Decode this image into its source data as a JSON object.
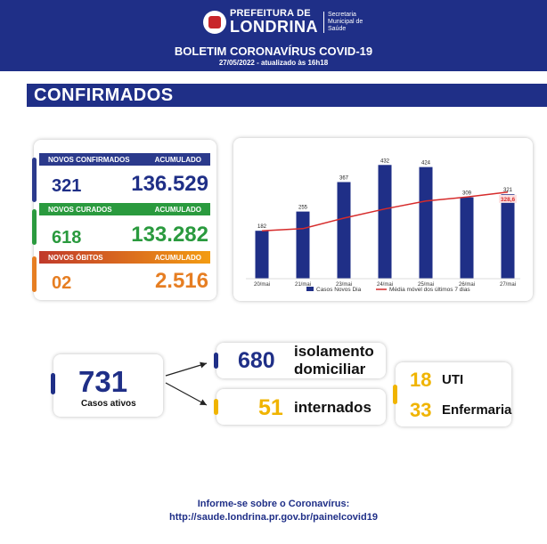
{
  "header": {
    "prefeitura_small": "PREFEITURA DE",
    "prefeitura_big": "LONDRINA",
    "secretaria_lines": [
      "Secretaria",
      "Municipal de",
      "Saúde"
    ],
    "title": "BOLETIM CORONAVÍRUS COVID-19",
    "date": "27/05/2022 - atualizado às 16h18"
  },
  "section": {
    "title": "CONFIRMADOS"
  },
  "stats": {
    "confirmados": {
      "label": "NOVOS CONFIRMADOS",
      "acc_label": "ACUMULADO",
      "new": "321",
      "accumulated": "136.529",
      "color": "#2b3a8c"
    },
    "curados": {
      "label": "NOVOS CURADOS",
      "acc_label": "ACUMULADO",
      "new": "618",
      "accumulated": "133.282",
      "color": "#2a9a3e"
    },
    "obitos": {
      "label": "NOVOS ÓBITOS",
      "acc_label": "ACUMULADO",
      "new": "02",
      "accumulated": "2.516",
      "color": "#e67e22",
      "bar_gradient": [
        "#c0392b",
        "#f39c12"
      ]
    }
  },
  "chart_data": {
    "type": "bar",
    "categories": [
      "20/mai",
      "21/mai",
      "23/mai",
      "24/mai",
      "25/mai",
      "26/mai",
      "27/mai"
    ],
    "series": [
      {
        "name": "Casos Novos Dia",
        "type": "bar",
        "values": [
          182,
          255,
          367,
          432,
          424,
          309,
          321
        ],
        "color": "#1f2f87"
      },
      {
        "name": "Média móvel dos últimos 7 dias",
        "type": "line",
        "values": [
          182,
          190,
          230,
          265,
          295,
          310,
          328.6
        ],
        "color": "#d62b2b"
      }
    ],
    "last_average_label": "328,6",
    "ylim": [
      0,
      460
    ],
    "grid": false,
    "legend": "bottom"
  },
  "active": {
    "number": "731",
    "label": "Casos ativos",
    "accent": "#1f2f87"
  },
  "isolation": {
    "number": "680",
    "label_line1": "isolamento",
    "label_line2": "domiciliar",
    "accent": "#1f2f87"
  },
  "hospital": {
    "number": "51",
    "label": "internados",
    "accent": "#f0b400"
  },
  "breakdown": {
    "uti_number": "18",
    "uti_label": "UTI",
    "enf_number": "33",
    "enf_label": "Enfermaria"
  },
  "footer": {
    "line1": "Informe-se sobre o Coronavírus:",
    "line2": "http://saude.londrina.pr.gov.br/painelcovid19"
  }
}
